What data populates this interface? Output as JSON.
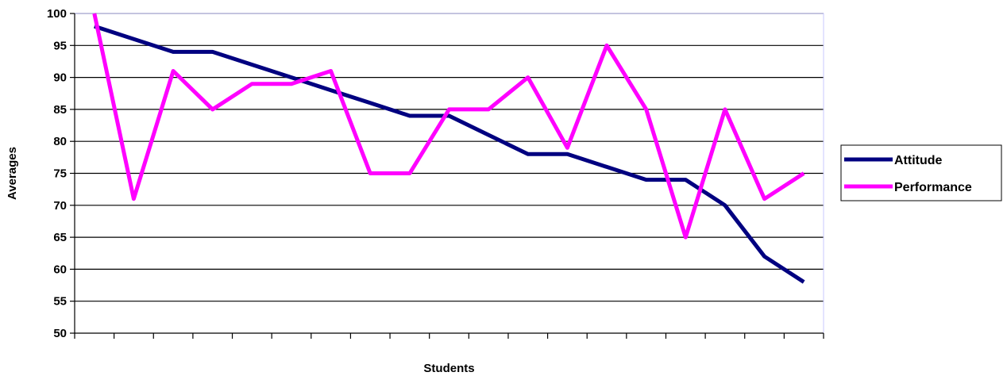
{
  "chart_data": {
    "type": "line",
    "title": "",
    "xlabel": "Students",
    "ylabel": "Averages",
    "ylim": [
      50,
      100
    ],
    "yticks": [
      50,
      55,
      60,
      65,
      70,
      75,
      80,
      85,
      90,
      95,
      100
    ],
    "grid": "horizontal",
    "legend_position": "right",
    "series": [
      {
        "name": "Attitude",
        "color": "#000080",
        "values": [
          98,
          96,
          94,
          94,
          92,
          90,
          88,
          86,
          84,
          84,
          81,
          78,
          78,
          76,
          74,
          74,
          70,
          62,
          58
        ]
      },
      {
        "name": "Performance",
        "color": "#ff00ff",
        "values": [
          100,
          71,
          91,
          85,
          89,
          89,
          91,
          75,
          75,
          85,
          85,
          90,
          79,
          95,
          85,
          65,
          85,
          71,
          75
        ]
      }
    ]
  }
}
